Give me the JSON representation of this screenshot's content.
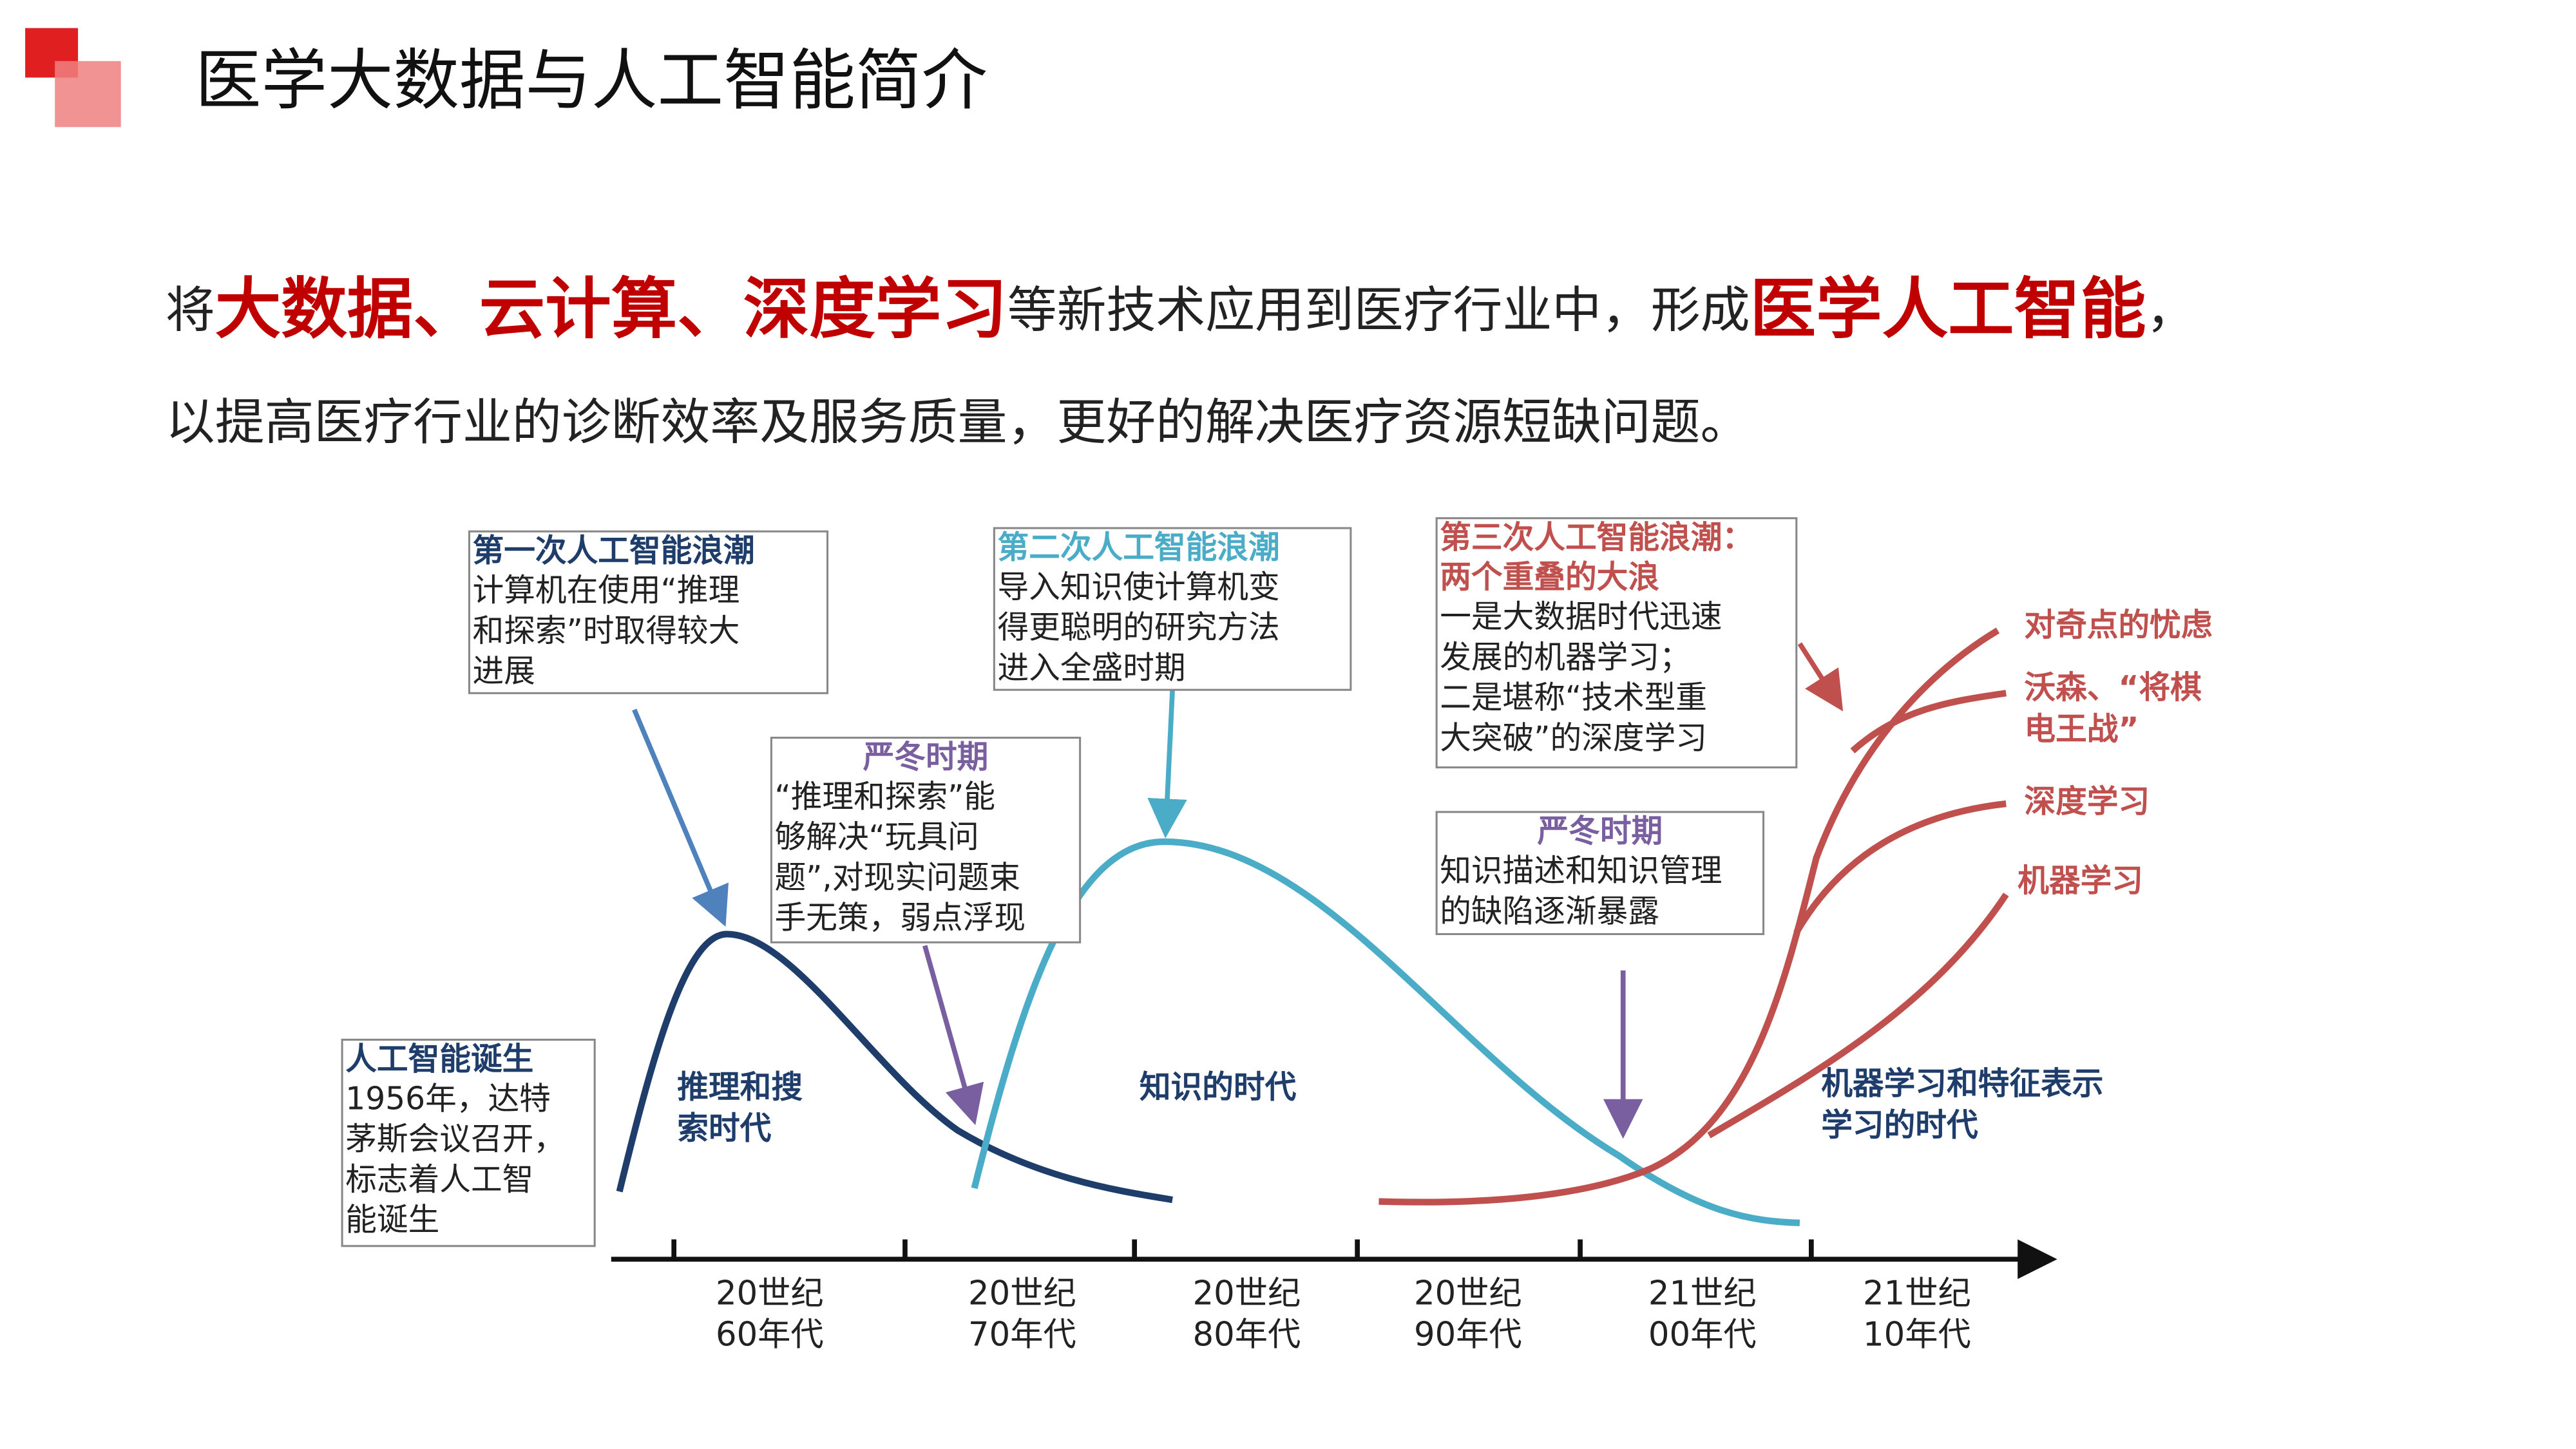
{
  "header": {
    "title": "医学大数据与人工智能简介"
  },
  "intro": {
    "line1": [
      {
        "text": "将",
        "highlight": false
      },
      {
        "text": "大数据、云计算、深度学习",
        "highlight": true
      },
      {
        "text": "等新技术应用到医疗行业中，形成",
        "highlight": false
      },
      {
        "text": "医学人工智能",
        "highlight": true
      },
      {
        "text": "，",
        "highlight": false
      }
    ],
    "line2": "以提高医疗行业的诊断效率及服务质量，更好的解决医疗资源短缺问题。"
  },
  "diagram": {
    "boxes": [
      {
        "title": [
          "第一次人工智能浪潮"
        ],
        "lines": [
          "计算机在使用“推理",
          "和探索”时取得较大",
          "进展"
        ]
      },
      {
        "title": [
          "严冬时期"
        ],
        "lines": [
          "“推理和探索”能",
          "够解决“玩具问",
          "题”,对现实问题束",
          "手无策，弱点浮现"
        ]
      },
      {
        "title": [
          "第二次人工智能浪潮"
        ],
        "lines": [
          "导入知识使计算机变",
          "得更聪明的研究方法",
          "进入全盛时期"
        ]
      },
      {
        "title": [
          "第三次人工智能浪潮：",
          "两个重叠的大浪"
        ],
        "lines": [
          "一是大数据时代迅速",
          "发展的机器学习；",
          "二是堪称“技术型重",
          "大突破”的深度学习"
        ]
      },
      {
        "title": [
          "严冬时期"
        ],
        "lines": [
          "知识描述和知识管理",
          "的缺陷逐渐暴露"
        ]
      },
      {
        "title": [
          "人工智能诞生"
        ],
        "lines": [
          "1956年，达特",
          "茅斯会议召开，",
          "标志着人工智",
          "能诞生"
        ]
      }
    ],
    "eras": [
      {
        "lines": [
          "推理和搜",
          "索时代"
        ]
      },
      {
        "lines": [
          "知识的时代"
        ]
      },
      {
        "lines": [
          "机器学习和特征表示",
          "学习的时代"
        ]
      }
    ],
    "milestones": [
      {
        "lines": [
          "对奇点的忧虑"
        ]
      },
      {
        "lines": [
          "沃森、“将棋",
          "电王战”"
        ]
      },
      {
        "lines": [
          "深度学习"
        ]
      },
      {
        "lines": [
          "机器学习"
        ]
      }
    ],
    "timeline": [
      {
        "lines": [
          "20世纪",
          "60年代"
        ]
      },
      {
        "lines": [
          "20世纪",
          "70年代"
        ]
      },
      {
        "lines": [
          "20世纪",
          "80年代"
        ]
      },
      {
        "lines": [
          "20世纪",
          "90年代"
        ]
      },
      {
        "lines": [
          "21世纪",
          "00年代"
        ]
      },
      {
        "lines": [
          "21世纪",
          "10年代"
        ]
      }
    ]
  }
}
